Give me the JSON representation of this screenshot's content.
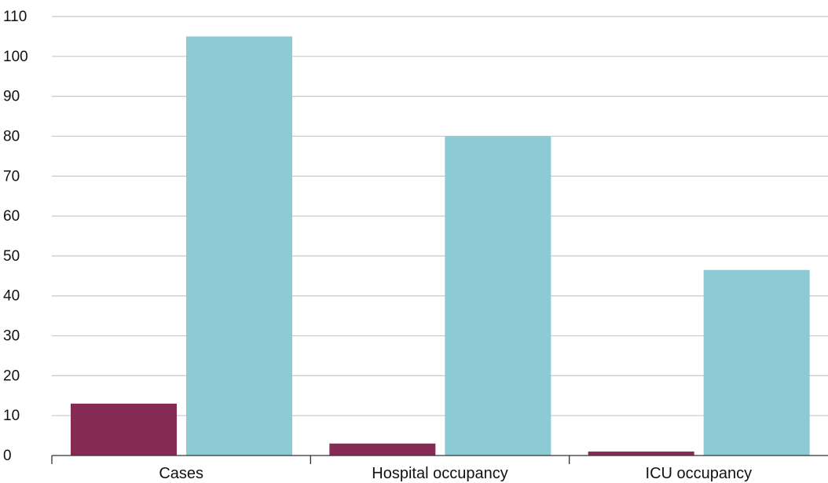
{
  "chart_data": {
    "type": "bar",
    "title": "",
    "xlabel": "",
    "ylabel": "",
    "categories": [
      "Cases",
      "Hospital occupancy",
      "ICU occupancy"
    ],
    "series": [
      {
        "color": "#862a56",
        "values": [
          13,
          3,
          1
        ]
      },
      {
        "color": "#8ccbd3",
        "values": [
          105,
          80,
          46.5
        ]
      }
    ],
    "ylim": [
      0,
      110
    ],
    "yticks": [
      0,
      10,
      20,
      30,
      40,
      50,
      60,
      70,
      80,
      90,
      100,
      110
    ],
    "grid": true,
    "legend": "none"
  }
}
